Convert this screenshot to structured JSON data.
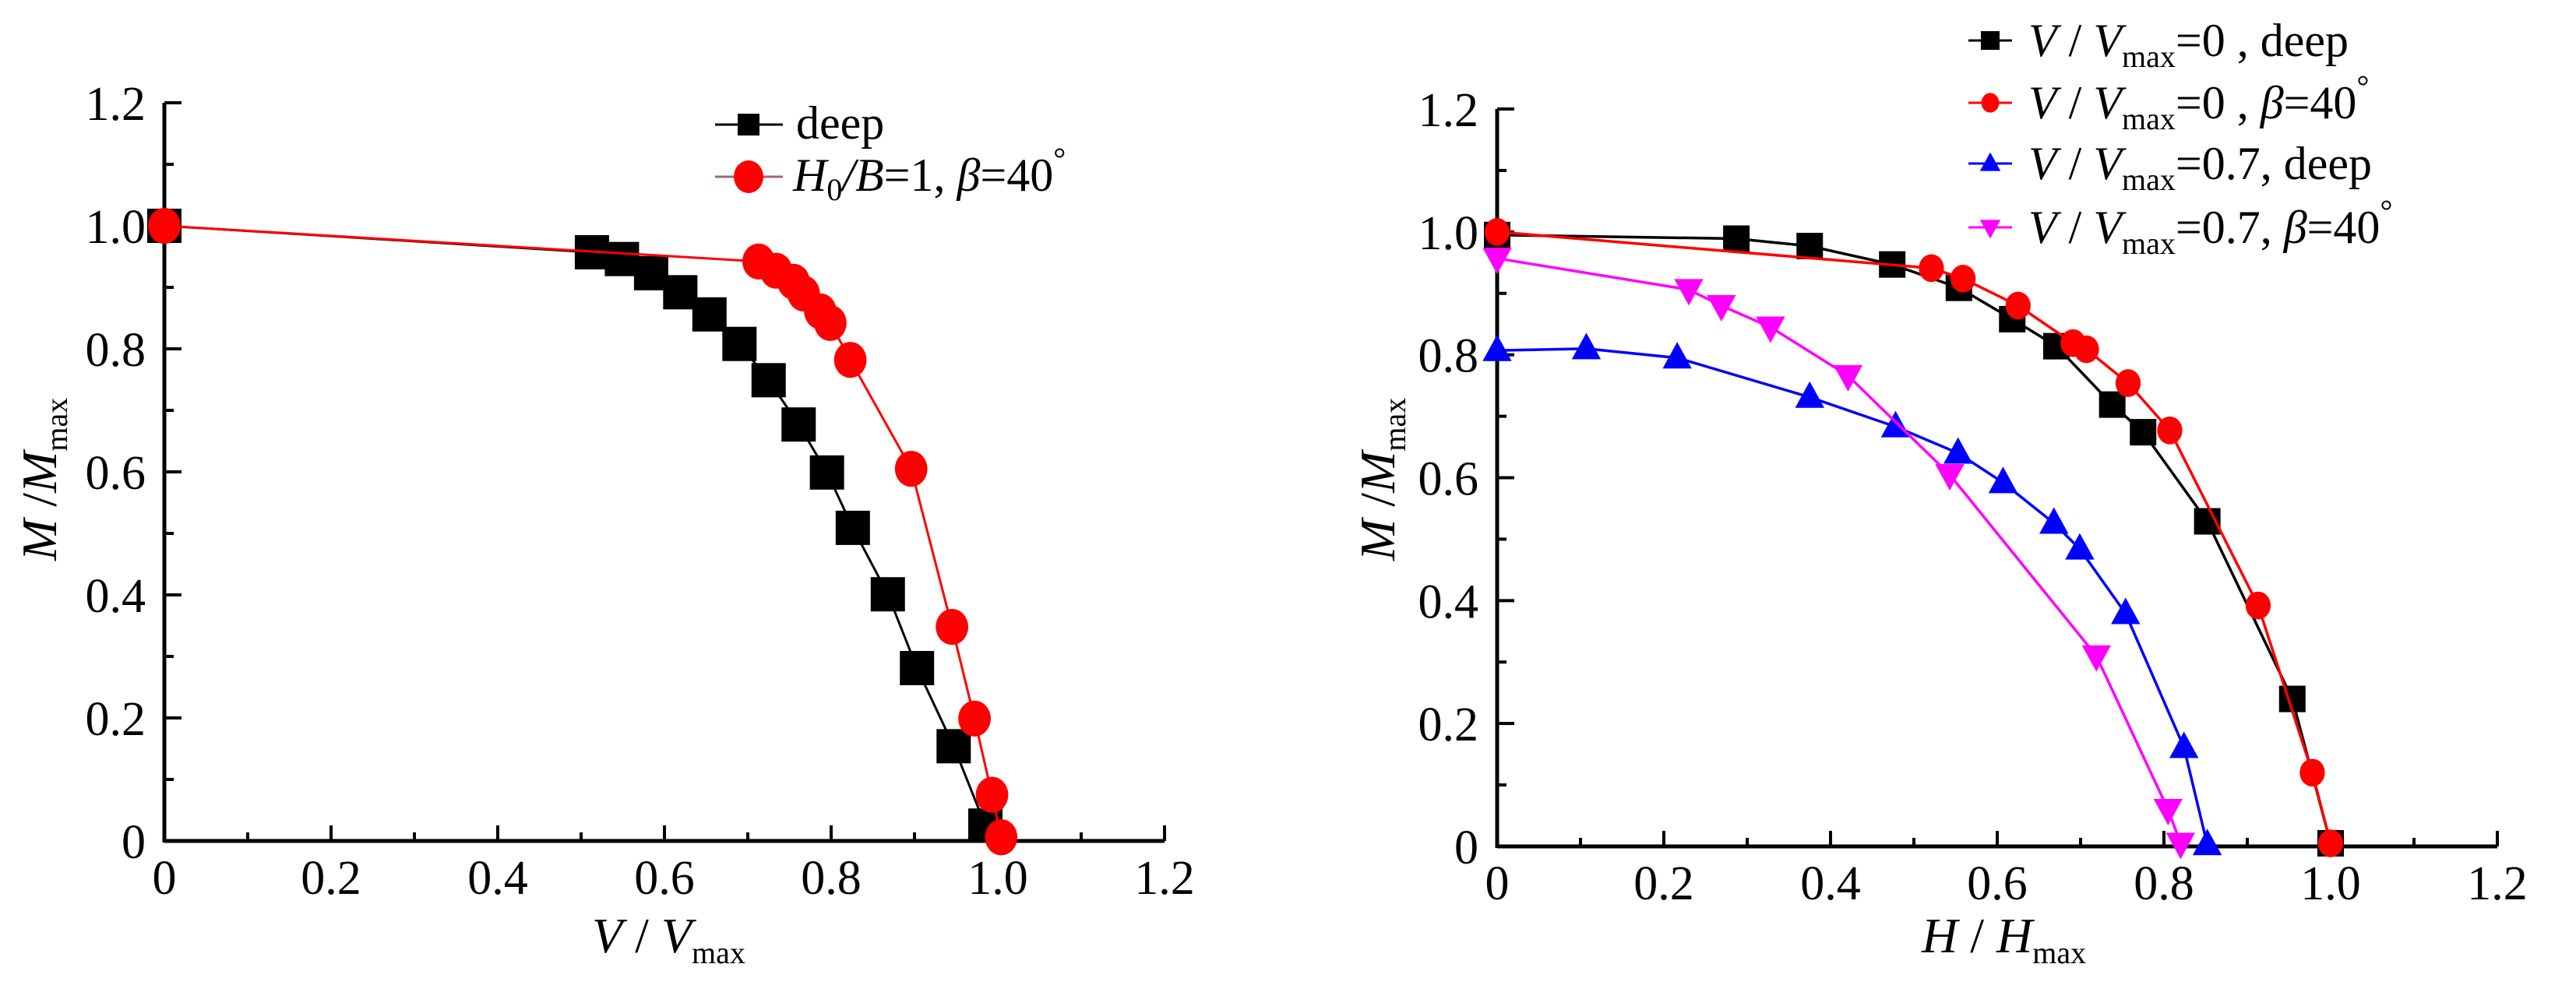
{
  "colors": {
    "deep": "#000000",
    "red": "#ff0000",
    "blue": "#0000ff",
    "magenta": "#ff00ff",
    "axis": "#000000"
  },
  "chart_data": [
    {
      "type": "line",
      "title": "",
      "xlabel": {
        "main": "V",
        "sep": " / ",
        "base": "V",
        "sub": "max"
      },
      "ylabel": {
        "main": "M",
        "sep": " /",
        "base": "M",
        "sub": "max"
      },
      "xlim": [
        0,
        1.2
      ],
      "ylim": [
        0,
        1.2
      ],
      "xticks": [
        "0",
        "0.2",
        "0.4",
        "0.6",
        "0.8",
        "1.0",
        "1.2"
      ],
      "yticks": [
        "0",
        "0.2",
        "0.4",
        "0.6",
        "0.8",
        "1.0",
        "1.2"
      ],
      "grid": false,
      "legend_position": "top-right",
      "series": [
        {
          "name": "deep",
          "legend": {
            "text": "deep"
          },
          "marker": "square",
          "color": "#000000",
          "x": [
            0,
            0.513,
            0.549,
            0.584,
            0.619,
            0.654,
            0.69,
            0.725,
            0.761,
            0.795,
            0.826,
            0.868,
            0.903,
            0.947,
            0.985
          ],
          "y": [
            1.0,
            0.957,
            0.946,
            0.923,
            0.892,
            0.856,
            0.808,
            0.749,
            0.677,
            0.599,
            0.509,
            0.401,
            0.281,
            0.154,
            0.025
          ]
        },
        {
          "name": "H0/B=1, β=40°",
          "legend": {
            "a": "H",
            "a_sub": "0",
            "b": "/B",
            "c": "=1, ",
            "d": "β",
            "e": "=40",
            "deg": "°"
          },
          "marker": "circle",
          "color": "#ff0000",
          "x": [
            0,
            0.713,
            0.734,
            0.755,
            0.767,
            0.787,
            0.799,
            0.823,
            0.896,
            0.945,
            0.972,
            0.993,
            1.004
          ],
          "y": [
            1.0,
            0.942,
            0.927,
            0.909,
            0.89,
            0.861,
            0.842,
            0.782,
            0.605,
            0.348,
            0.199,
            0.075,
            0.006
          ]
        }
      ]
    },
    {
      "type": "line",
      "title": "",
      "xlabel": {
        "main": "H",
        "sep": " / ",
        "base": "H",
        "sub": "max"
      },
      "ylabel": {
        "main": "M",
        "sep": " /",
        "base": "M",
        "sub": "max"
      },
      "xlim": [
        0,
        1.2
      ],
      "ylim": [
        0,
        1.2
      ],
      "xticks": [
        "0",
        "0.2",
        "0.4",
        "0.6",
        "0.8",
        "1.0",
        "1.2"
      ],
      "yticks": [
        "0",
        "0.2",
        "0.4",
        "0.6",
        "0.8",
        "1.0",
        "1.2"
      ],
      "grid": false,
      "legend_position": "top-right",
      "series": [
        {
          "name": "V/Vmax=0, deep",
          "legend": {
            "v": "V",
            "sep": " / ",
            "vb": "V",
            "sub": "max",
            "rest": "=0 , deep"
          },
          "marker": "square",
          "color": "#000000",
          "x": [
            0,
            0.287,
            0.375,
            0.474,
            0.554,
            0.618,
            0.671,
            0.738,
            0.775,
            0.852,
            0.954,
            1.0
          ],
          "y": [
            0.995,
            0.989,
            0.977,
            0.947,
            0.909,
            0.858,
            0.814,
            0.719,
            0.674,
            0.529,
            0.24,
            0.005
          ]
        },
        {
          "name": "V/Vmax=0, β=40°",
          "legend": {
            "v": "V",
            "sep": " / ",
            "vb": "V",
            "sub": "max",
            "rest": "=0 , ",
            "beta": "β",
            "eq": "=40",
            "deg": "°"
          },
          "marker": "circle",
          "color": "#ff0000",
          "x": [
            0,
            0.521,
            0.559,
            0.625,
            0.691,
            0.707,
            0.757,
            0.807,
            0.913,
            0.978,
            1.0
          ],
          "y": [
            1.0,
            0.941,
            0.924,
            0.88,
            0.819,
            0.809,
            0.754,
            0.677,
            0.392,
            0.12,
            0.005
          ]
        },
        {
          "name": "V/Vmax=0.7, deep",
          "legend": {
            "v": "V",
            "sep": " / ",
            "vb": "V",
            "sub": "max",
            "rest": "=0.7, deep"
          },
          "marker": "triangle-up",
          "color": "#0000ff",
          "x": [
            0,
            0.107,
            0.216,
            0.375,
            0.478,
            0.553,
            0.607,
            0.668,
            0.699,
            0.754,
            0.824,
            0.852
          ],
          "y": [
            0.807,
            0.81,
            0.795,
            0.731,
            0.683,
            0.64,
            0.592,
            0.526,
            0.484,
            0.379,
            0.161,
            0.003
          ]
        },
        {
          "name": "V/Vmax=0.7, β=40°",
          "legend": {
            "v": "V",
            "sep": " / ",
            "vb": "V",
            "sub": "max",
            "rest": "=0.7, ",
            "beta": "β",
            "eq": "=40",
            "deg": "°"
          },
          "marker": "triangle-down",
          "color": "#ff00ff",
          "x": [
            0,
            0.23,
            0.269,
            0.328,
            0.421,
            0.543,
            0.719,
            0.805,
            0.82
          ],
          "y": [
            0.957,
            0.906,
            0.88,
            0.845,
            0.766,
            0.605,
            0.31,
            0.06,
            0.005
          ]
        }
      ]
    }
  ]
}
